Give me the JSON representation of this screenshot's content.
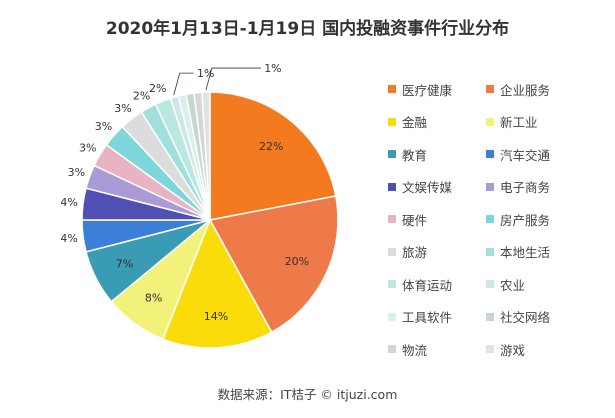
{
  "chart_data": {
    "type": "pie",
    "title": "2020年1月13日-1月19日 国内投融资事件行业分布",
    "legend_position": "right",
    "slices": [
      {
        "name": "医疗健康",
        "value": 22,
        "label": "22%",
        "color": "#f47a20"
      },
      {
        "name": "企业服务",
        "value": 20,
        "label": "20%",
        "color": "#ee7a4a"
      },
      {
        "name": "金融",
        "value": 14,
        "label": "14%",
        "color": "#fadc0a"
      },
      {
        "name": "新工业",
        "value": 8,
        "label": "8%",
        "color": "#f2f27a"
      },
      {
        "name": "教育",
        "value": 7,
        "label": "7%",
        "color": "#3a9bb4"
      },
      {
        "name": "汽车交通",
        "value": 4,
        "label": "4%",
        "color": "#3b7fd9"
      },
      {
        "name": "文娱传媒",
        "value": 4,
        "label": "4%",
        "color": "#5050b4"
      },
      {
        "name": "电子商务",
        "value": 3,
        "label": "3%",
        "color": "#ab9ad8"
      },
      {
        "name": "硬件",
        "value": 3,
        "label": "3%",
        "color": "#e8b4c4"
      },
      {
        "name": "房产服务",
        "value": 3,
        "label": "3%",
        "color": "#7ed6da"
      },
      {
        "name": "旅游",
        "value": 3,
        "label": "3%",
        "color": "#dcdcdc"
      },
      {
        "name": "本地生活",
        "value": 2,
        "label": "2%",
        "color": "#9fe0dc"
      },
      {
        "name": "体育运动",
        "value": 2,
        "label": "2%",
        "color": "#b8e8e0"
      },
      {
        "name": "农业",
        "value": 1,
        "label": "1%",
        "color": "#cfe6e6"
      },
      {
        "name": "工具软件",
        "value": 1,
        "label": "",
        "color": "#d8efec"
      },
      {
        "name": "社交网络",
        "value": 1,
        "label": "",
        "color": "#c8d6d2"
      },
      {
        "name": "物流",
        "value": 1,
        "label": "",
        "color": "#d6d6d6"
      },
      {
        "name": "游戏",
        "value": 1,
        "label": "1%",
        "color": "#dfe4e2"
      }
    ]
  },
  "footer": "数据来源：IT桔子 © itjuzi.com"
}
